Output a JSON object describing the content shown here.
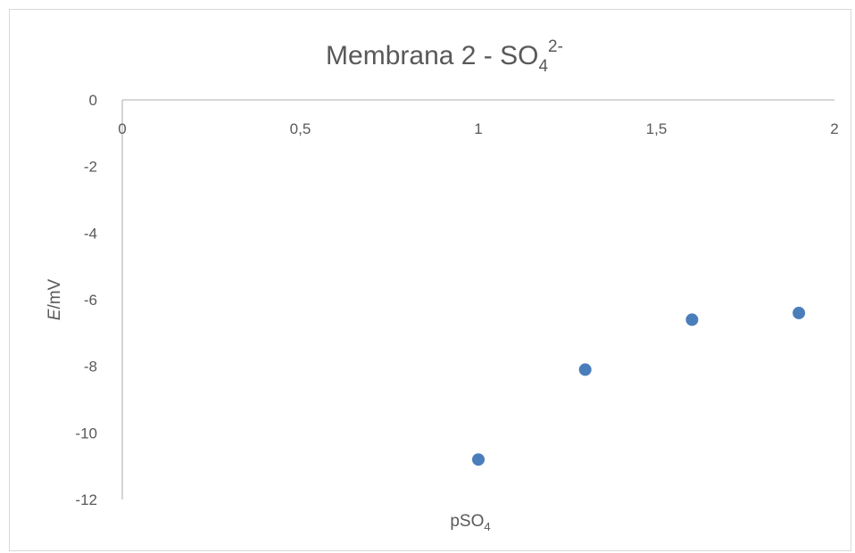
{
  "chart_data": {
    "type": "scatter",
    "title": "Membrana 2 - SO",
    "title_sub": "4",
    "title_sup": "2-",
    "xlabel_italic": "E",
    "xlabel": "pSO",
    "xlabel_sub": "4",
    "ylabel_italic": "E",
    "ylabel": "/mV",
    "xlim": [
      0,
      2
    ],
    "ylim": [
      -12,
      0
    ],
    "x_ticks": [
      "0",
      "0,5",
      "1",
      "1,5",
      "2"
    ],
    "y_ticks": [
      "0",
      "-2",
      "-4",
      "-6",
      "-8",
      "-10",
      "-12"
    ],
    "x_tick_values": [
      0,
      0.5,
      1,
      1.5,
      2
    ],
    "y_tick_values": [
      0,
      -2,
      -4,
      -6,
      -8,
      -10,
      -12
    ],
    "grid": false,
    "legend": "none",
    "marker_color": "#4a7ebb",
    "series": [
      {
        "x": [
          1.0,
          1.3,
          1.6,
          1.9
        ],
        "y": [
          -10.8,
          -8.1,
          -6.6,
          -6.4
        ]
      }
    ]
  }
}
